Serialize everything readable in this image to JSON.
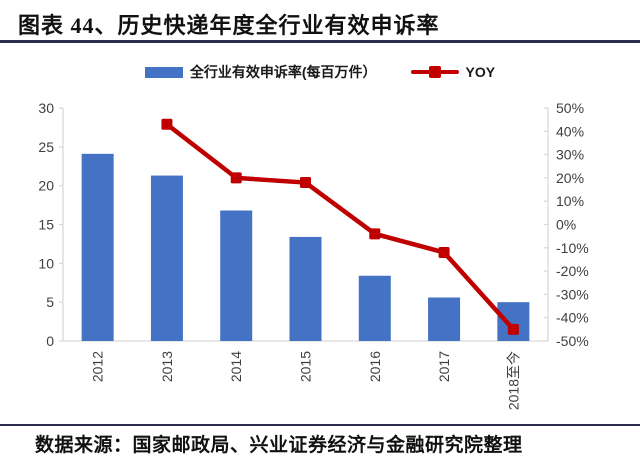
{
  "title": "图表 44、历史快递年度全行业有效申诉率",
  "legend": {
    "bar_label": "全行业有效申诉率(每百万件）",
    "line_label": "YOY"
  },
  "source": "数据来源：国家邮政局、兴业证券经济与金融研究院整理",
  "colors": {
    "bar": "#4472c4",
    "line": "#c00000",
    "axis_line": "#d9d9d9",
    "tick_text": "#404040",
    "rule": "#2d2d52"
  },
  "chart_data": {
    "type": "bar",
    "subtype": "bar+line combo",
    "categories": [
      "2012",
      "2013",
      "2014",
      "2015",
      "2016",
      "2017",
      "2018至今"
    ],
    "series": [
      {
        "name": "全行业有效申诉率(每百万件）",
        "type": "bar",
        "axis": "left",
        "color": "#4472c4",
        "values": [
          24.1,
          21.3,
          16.8,
          13.4,
          8.4,
          5.6,
          5.0
        ]
      },
      {
        "name": "YOY",
        "type": "line",
        "axis": "right",
        "color": "#c00000",
        "marker": "square",
        "values": [
          null,
          43,
          20,
          18,
          -4,
          -12,
          -45
        ]
      }
    ],
    "left_axis": {
      "min": 0,
      "max": 30,
      "step": 5,
      "tick_labels": [
        "0",
        "5",
        "10",
        "15",
        "20",
        "25",
        "30"
      ]
    },
    "right_axis": {
      "min": -50,
      "max": 50,
      "step": 10,
      "tick_labels": [
        "50%",
        "40%",
        "30%",
        "20%",
        "10%",
        "0%",
        "-10%",
        "-20%",
        "-30%",
        "-40%",
        "-50%"
      ]
    },
    "grid": false,
    "legend_position": "top",
    "x_tick_rotation": -90
  }
}
